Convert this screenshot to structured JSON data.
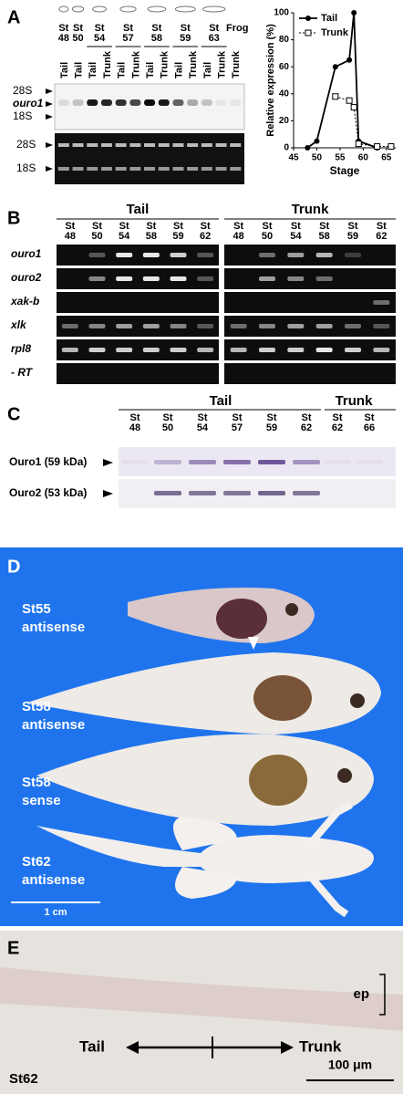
{
  "panel_a": {
    "label": "A",
    "stages": [
      [
        "St",
        "48"
      ],
      [
        "St",
        "50"
      ],
      [
        "St",
        "54"
      ],
      [
        "St",
        "57"
      ],
      [
        "St",
        "58"
      ],
      [
        "St",
        "59"
      ],
      [
        "St",
        "63"
      ]
    ],
    "frog": "Frog",
    "lanes": [
      "Tail",
      "Tail",
      "Tail",
      "Trunk",
      "Tail",
      "Trunk",
      "Tail",
      "Trunk",
      "Tail",
      "Trunk",
      "Tail",
      "Trunk",
      "Trunk"
    ],
    "gel_top_markers": [
      "28S",
      "ouro1",
      "18S"
    ],
    "gel_bottom_markers": [
      "28S",
      "18S"
    ]
  },
  "chart_data": {
    "type": "line",
    "xlabel": "Stage",
    "ylabel": "Relative expression (%)",
    "xlim": [
      45,
      67
    ],
    "xticks": [
      45,
      50,
      55,
      60,
      65
    ],
    "ylim": [
      0,
      100
    ],
    "yticks": [
      0,
      20,
      40,
      60,
      80,
      100
    ],
    "legend": "upper left",
    "series": [
      {
        "name": "Tail",
        "color": "#000000",
        "x": [
          48,
          50,
          54,
          57,
          58,
          59,
          63
        ],
        "values": [
          0,
          5,
          60,
          65,
          100,
          5,
          0
        ]
      },
      {
        "name": "Trunk",
        "color": "#000000",
        "x": [
          54,
          57,
          58,
          59,
          63,
          66
        ],
        "values": [
          38,
          35,
          30,
          3,
          1,
          1
        ]
      }
    ]
  },
  "panel_b": {
    "label": "B",
    "groups": [
      "Tail",
      "Trunk"
    ],
    "stages": [
      [
        [
          "St",
          "48"
        ],
        [
          "St",
          "50"
        ],
        [
          "St",
          "54"
        ],
        [
          "St",
          "58"
        ],
        [
          "St",
          "59"
        ],
        [
          "St",
          "62"
        ]
      ],
      [
        [
          "St",
          "48"
        ],
        [
          "St",
          "50"
        ],
        [
          "St",
          "54"
        ],
        [
          "St",
          "58"
        ],
        [
          "St",
          "59"
        ],
        [
          "St",
          "62"
        ]
      ]
    ],
    "genes": [
      "ouro1",
      "ouro2",
      "xak-b",
      "xlk",
      "rpl8",
      "- RT"
    ]
  },
  "panel_c": {
    "label": "C",
    "groups": [
      "Tail",
      "Trunk"
    ],
    "stages": [
      [
        "St",
        "48"
      ],
      [
        "St",
        "50"
      ],
      [
        "St",
        "54"
      ],
      [
        "St",
        "57"
      ],
      [
        "St",
        "59"
      ],
      [
        "St",
        "62"
      ],
      [
        "St",
        "62"
      ],
      [
        "St",
        "66"
      ]
    ],
    "proteins": [
      "Ouro1 (59 kDa)",
      "Ouro2 (53 kDa)"
    ]
  },
  "panel_d": {
    "label": "D",
    "specimens": [
      [
        "St55",
        "antisense"
      ],
      [
        "St58",
        "antisense"
      ],
      [
        "St58",
        "sense"
      ],
      [
        "St62",
        "antisense"
      ]
    ],
    "scale_bar": "1 cm"
  },
  "panel_e": {
    "label": "E",
    "layer": "ep",
    "from": "Tail",
    "to": "Trunk",
    "stage": "St62",
    "scale_bar": "100 μm"
  }
}
